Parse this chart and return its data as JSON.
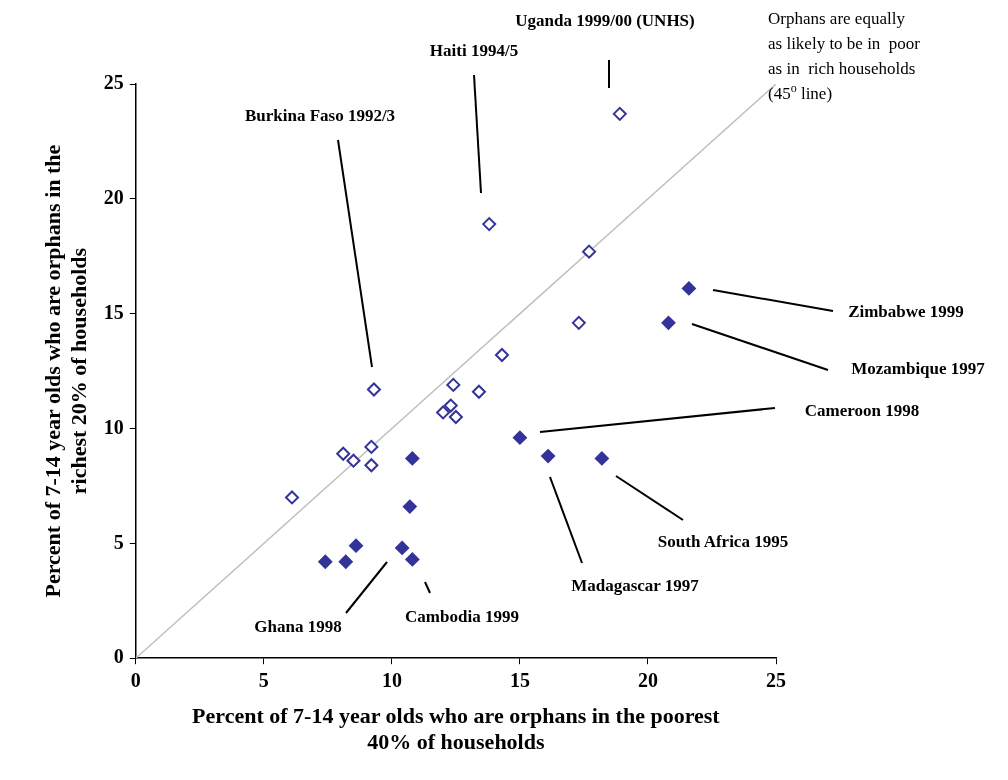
{
  "chart_data": {
    "type": "scatter",
    "xlabel": "Percent of 7-14 year olds who are orphans in the poorest 40% of households",
    "ylabel": "Percent of 7-14 year olds who are orphans in the richest 20% of households",
    "xlim": [
      0,
      25
    ],
    "xticks": [
      0,
      5,
      10,
      15,
      20,
      25
    ],
    "ylim": [
      0,
      25
    ],
    "yticks": [
      0,
      5,
      10,
      15,
      20,
      25
    ],
    "grid": false,
    "legend": false,
    "marker": "diamond",
    "series": [
      {
        "color": "#333399",
        "x": [
          6.1,
          8.1,
          8.5,
          9.2,
          9.2,
          9.3,
          12.0,
          12.3,
          12.5,
          12.4,
          13.4,
          14.3,
          17.3,
          17.7,
          13.8,
          18.9
        ],
        "values": [
          7.0,
          8.9,
          8.6,
          9.2,
          8.4,
          11.7,
          10.7,
          11.0,
          10.5,
          11.9,
          11.6,
          13.2,
          14.6,
          17.7,
          18.9,
          23.7
        ]
      },
      {
        "color": "#333399",
        "x": [
          7.4,
          8.2,
          8.6,
          10.4,
          10.8,
          10.7,
          10.8,
          15.0,
          16.1,
          18.2,
          20.8,
          21.6
        ],
        "values": [
          4.2,
          4.2,
          4.9,
          4.8,
          4.3,
          6.6,
          8.7,
          9.6,
          8.8,
          8.7,
          14.6,
          16.1
        ]
      },
      {
        "type": "line",
        "color": "#c0c0c0",
        "marker": "none",
        "x": [
          0,
          25
        ],
        "values": [
          0,
          25
        ]
      }
    ],
    "annotations": [
      "Uganda 1999/00 (UNHS)",
      "Haiti 1994/5",
      "Burkina Faso 1992/3",
      "Zimbabwe 1999",
      "Mozambique 1997",
      "Cameroon 1998",
      "South Africa 1995",
      "Madagascar 1997",
      "Ghana 1998",
      "Cambodia 1999",
      "Orphans are equally\nas likely to be in  poor\nas in  rich households\n(45$^{o}$ line)"
    ]
  }
}
